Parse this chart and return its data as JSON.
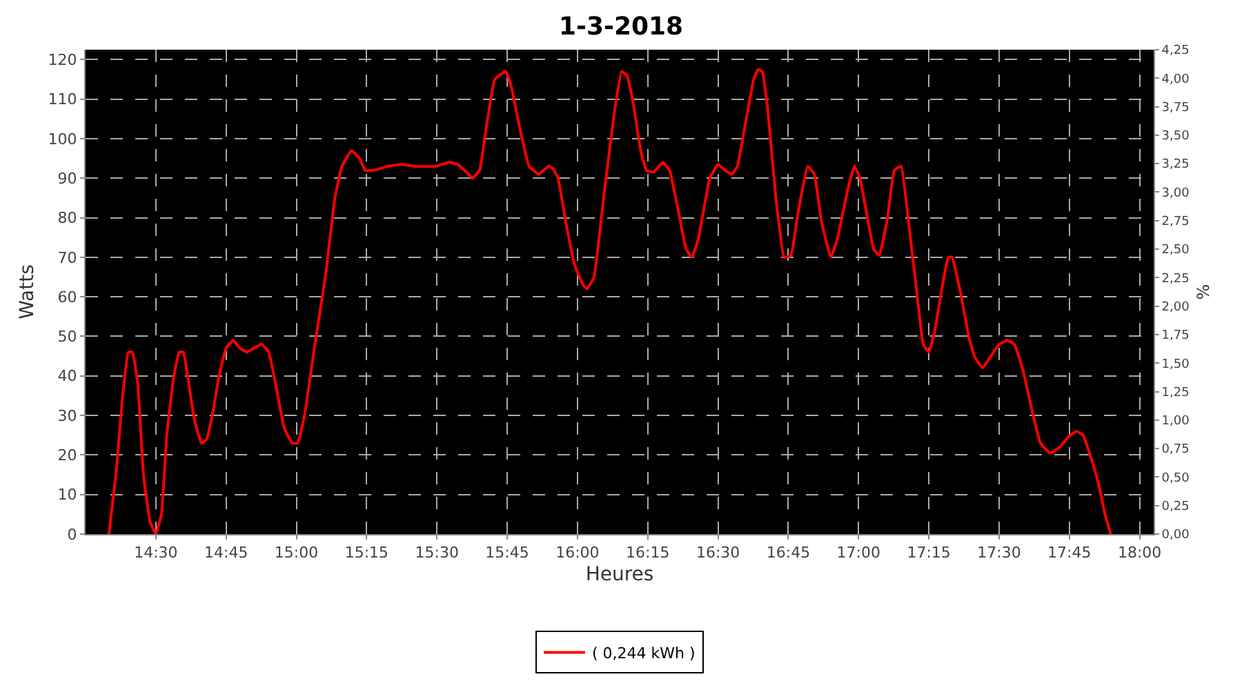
{
  "chart_data": {
    "type": "line",
    "title": "1-3-2018",
    "xlabel": "Heures",
    "ylabel": "Watts",
    "y2label": "%",
    "x": [
      14.333,
      14.358,
      14.382,
      14.402,
      14.417,
      14.436,
      14.456,
      14.48,
      14.5,
      14.52,
      14.539,
      14.564,
      14.583,
      14.598,
      14.613,
      14.637,
      14.662,
      14.681,
      14.701,
      14.725,
      14.75,
      14.775,
      14.799,
      14.824,
      14.848,
      14.877,
      14.902,
      14.926,
      14.956,
      14.985,
      15.005,
      15.029,
      15.064,
      15.103,
      15.137,
      15.162,
      15.196,
      15.225,
      15.245,
      15.275,
      15.324,
      15.373,
      15.422,
      15.495,
      15.544,
      15.574,
      15.613,
      15.627,
      15.652,
      15.676,
      15.706,
      15.745,
      15.765,
      15.794,
      15.828,
      15.863,
      15.897,
      15.912,
      15.931,
      15.961,
      15.99,
      16.02,
      16.034,
      16.059,
      16.093,
      16.132,
      16.157,
      16.176,
      16.196,
      16.225,
      16.245,
      16.27,
      16.304,
      16.328,
      16.358,
      16.387,
      16.407,
      16.431,
      16.471,
      16.5,
      16.525,
      16.549,
      16.569,
      16.593,
      16.627,
      16.642,
      16.657,
      16.676,
      16.706,
      16.735,
      16.76,
      16.784,
      16.819,
      16.843,
      16.868,
      16.902,
      16.926,
      16.961,
      16.985,
      17.005,
      17.029,
      17.054,
      17.074,
      17.103,
      17.127,
      17.152,
      17.176,
      17.206,
      17.23,
      17.25,
      17.27,
      17.299,
      17.319,
      17.333,
      17.363,
      17.392,
      17.412,
      17.441,
      17.471,
      17.5,
      17.529,
      17.554,
      17.583,
      17.618,
      17.647,
      17.681,
      17.716,
      17.745,
      17.775,
      17.799,
      17.824,
      17.853,
      17.877,
      17.897
    ],
    "series": [
      {
        "name": "( 0,244 kWh )",
        "color": "#ff0000",
        "values": [
          0,
          15,
          35,
          46,
          46,
          38,
          15,
          3,
          0,
          5,
          25,
          40,
          46,
          46,
          40,
          29,
          23,
          24,
          30,
          40,
          47,
          49,
          47,
          46,
          47,
          48,
          46,
          38,
          27,
          23,
          23,
          30,
          47,
          65,
          85,
          93,
          97,
          95,
          92,
          92,
          93,
          93.5,
          93,
          93,
          94,
          93.5,
          91,
          90,
          92,
          103,
          115,
          117,
          113,
          103,
          93,
          91,
          93,
          92.5,
          90,
          78,
          68,
          63,
          62,
          65,
          85,
          107,
          117,
          116,
          110,
          97,
          92,
          91.5,
          94,
          92,
          82,
          72,
          70,
          75,
          90,
          93.5,
          92,
          91,
          93,
          102,
          115,
          117.5,
          117,
          108,
          85,
          70,
          70.5,
          81,
          93,
          91,
          79,
          70,
          75,
          87,
          93,
          90,
          81,
          72,
          70.5,
          80,
          92,
          93,
          80,
          62,
          48,
          46,
          51,
          63,
          70,
          70,
          61,
          50,
          45,
          42,
          45,
          48,
          49,
          48,
          42,
          31,
          23,
          20.5,
          22,
          24.5,
          26,
          25,
          20,
          13,
          5,
          0
        ]
      }
    ],
    "xlim": [
      14.25,
      18.05
    ],
    "xticks": [
      {
        "value": 14.5,
        "label": "14:30"
      },
      {
        "value": 14.75,
        "label": "14:45"
      },
      {
        "value": 15,
        "label": "15:00"
      },
      {
        "value": 15.25,
        "label": "15:15"
      },
      {
        "value": 15.5,
        "label": "15:30"
      },
      {
        "value": 15.75,
        "label": "15:45"
      },
      {
        "value": 16,
        "label": "16:00"
      },
      {
        "value": 16.25,
        "label": "16:15"
      },
      {
        "value": 16.5,
        "label": "16:30"
      },
      {
        "value": 16.75,
        "label": "16:45"
      },
      {
        "value": 17,
        "label": "17:00"
      },
      {
        "value": 17.25,
        "label": "17:15"
      },
      {
        "value": 17.5,
        "label": "17:30"
      },
      {
        "value": 17.75,
        "label": "17:45"
      },
      {
        "value": 18,
        "label": "18:00"
      }
    ],
    "ylim": [
      0,
      122.5
    ],
    "yticks": [
      0,
      10,
      20,
      30,
      40,
      50,
      60,
      70,
      80,
      90,
      100,
      110,
      120
    ],
    "y2lim": [
      0,
      4.25
    ],
    "y2ticks": [
      {
        "value": 0,
        "label": "0,00"
      },
      {
        "value": 0.25,
        "label": "0,25"
      },
      {
        "value": 0.5,
        "label": "0,50"
      },
      {
        "value": 0.75,
        "label": "0,75"
      },
      {
        "value": 1,
        "label": "1,00"
      },
      {
        "value": 1.25,
        "label": "1,25"
      },
      {
        "value": 1.5,
        "label": "1,50"
      },
      {
        "value": 1.75,
        "label": "1,75"
      },
      {
        "value": 2,
        "label": "2,00"
      },
      {
        "value": 2.25,
        "label": "2,25"
      },
      {
        "value": 2.5,
        "label": "2,50"
      },
      {
        "value": 2.75,
        "label": "2,75"
      },
      {
        "value": 3,
        "label": "3,00"
      },
      {
        "value": 3.25,
        "label": "3,25"
      },
      {
        "value": 3.5,
        "label": "3,50"
      },
      {
        "value": 3.75,
        "label": "3,75"
      },
      {
        "value": 4,
        "label": "4,00"
      },
      {
        "value": 4.25,
        "label": "4,25"
      }
    ],
    "grid": true,
    "legend": "bottom",
    "marker": "none",
    "line_style": "solid"
  }
}
